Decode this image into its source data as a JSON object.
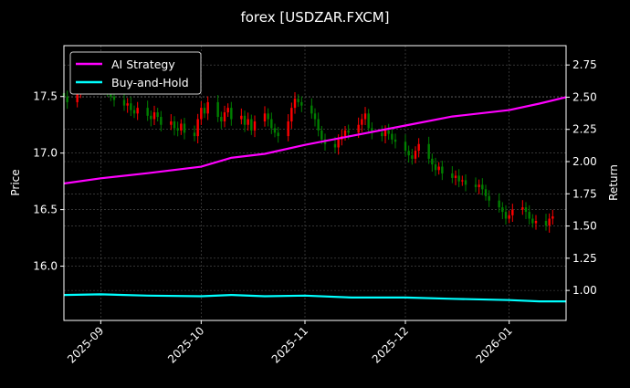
{
  "chart_data": {
    "type": "candlestick+line",
    "title": "forex [USDZAR.FXCM]",
    "ylabel_left": "Price",
    "ylabel_right": "Return",
    "xlim": [
      "2025-08-21",
      "2026-01-18"
    ],
    "ylim_left": [
      15.52,
      17.95
    ],
    "ylim_right": [
      0.767,
      2.9
    ],
    "x_ticks": [
      "2025-09",
      "2025-10",
      "2025-11",
      "2025-12",
      "2026-01"
    ],
    "x_tick_dates": [
      "2025-09-01",
      "2025-10-01",
      "2025-11-01",
      "2025-12-01",
      "2026-01-01"
    ],
    "left_ticks": [
      "16.0",
      "16.5",
      "17.0",
      "17.5"
    ],
    "right_ticks": [
      "1.00",
      "1.25",
      "1.50",
      "1.75",
      "2.00",
      "2.25",
      "2.50",
      "2.75"
    ],
    "grid": true,
    "legend_placement": "top-left",
    "colors": {
      "up": "#008000",
      "down": "#ff0000",
      "ai": "#ff00ff",
      "bh": "#00ffff",
      "background": "#000000",
      "grid": "#555555"
    },
    "price_start": "2025-08-21",
    "price_closes": [
      17.5,
      17.45,
      17.55,
      17.62,
      17.7,
      17.66,
      17.72,
      17.6,
      17.58,
      17.55,
      17.5,
      17.47,
      17.42,
      17.44,
      17.38,
      17.35,
      17.4,
      17.33,
      17.3,
      17.36,
      17.32,
      17.25,
      17.28,
      17.22,
      17.2,
      17.26,
      17.18,
      17.15,
      17.3,
      17.4,
      17.35,
      17.45,
      17.32,
      17.28,
      17.36,
      17.4,
      17.3,
      17.33,
      17.25,
      17.3,
      17.2,
      17.28,
      17.35,
      17.3,
      17.22,
      17.18,
      17.15,
      17.28,
      17.4,
      17.48,
      17.45,
      17.42,
      17.35,
      17.3,
      17.2,
      17.12,
      17.08,
      17.05,
      17.12,
      17.15,
      17.2,
      17.18,
      17.25,
      17.3,
      17.35,
      17.22,
      17.18,
      17.15,
      17.2,
      17.17,
      17.12,
      17.1,
      17.02,
      16.98,
      16.95,
      17.02,
      17.08,
      16.95,
      16.9,
      16.85,
      16.88,
      16.82,
      16.78,
      16.8,
      16.75,
      16.76,
      16.72,
      16.7,
      16.72,
      16.68,
      16.62,
      16.58,
      16.52,
      16.48,
      16.42,
      16.45,
      16.5,
      16.52,
      16.48,
      16.42,
      16.38,
      16.4,
      16.36,
      16.42,
      16.44
    ],
    "series": [
      {
        "name": "AI Strategy",
        "axis": "right",
        "dates": [
          "2025-08-21",
          "2025-09-01",
          "2025-09-15",
          "2025-10-01",
          "2025-10-10",
          "2025-10-20",
          "2025-11-01",
          "2025-11-15",
          "2025-12-01",
          "2025-12-15",
          "2026-01-01",
          "2026-01-10",
          "2026-01-18"
        ],
        "values": [
          1.83,
          1.87,
          1.91,
          1.96,
          2.03,
          2.06,
          2.13,
          2.2,
          2.28,
          2.35,
          2.4,
          2.45,
          2.5
        ]
      },
      {
        "name": "Buy-and-Hold",
        "axis": "right",
        "dates": [
          "2025-08-21",
          "2025-09-01",
          "2025-09-15",
          "2025-10-01",
          "2025-10-10",
          "2025-10-20",
          "2025-11-01",
          "2025-11-15",
          "2025-12-01",
          "2025-12-15",
          "2026-01-01",
          "2026-01-10",
          "2026-01-18"
        ],
        "values": [
          0.965,
          0.97,
          0.96,
          0.955,
          0.965,
          0.955,
          0.96,
          0.945,
          0.945,
          0.935,
          0.925,
          0.915,
          0.915
        ]
      }
    ]
  }
}
